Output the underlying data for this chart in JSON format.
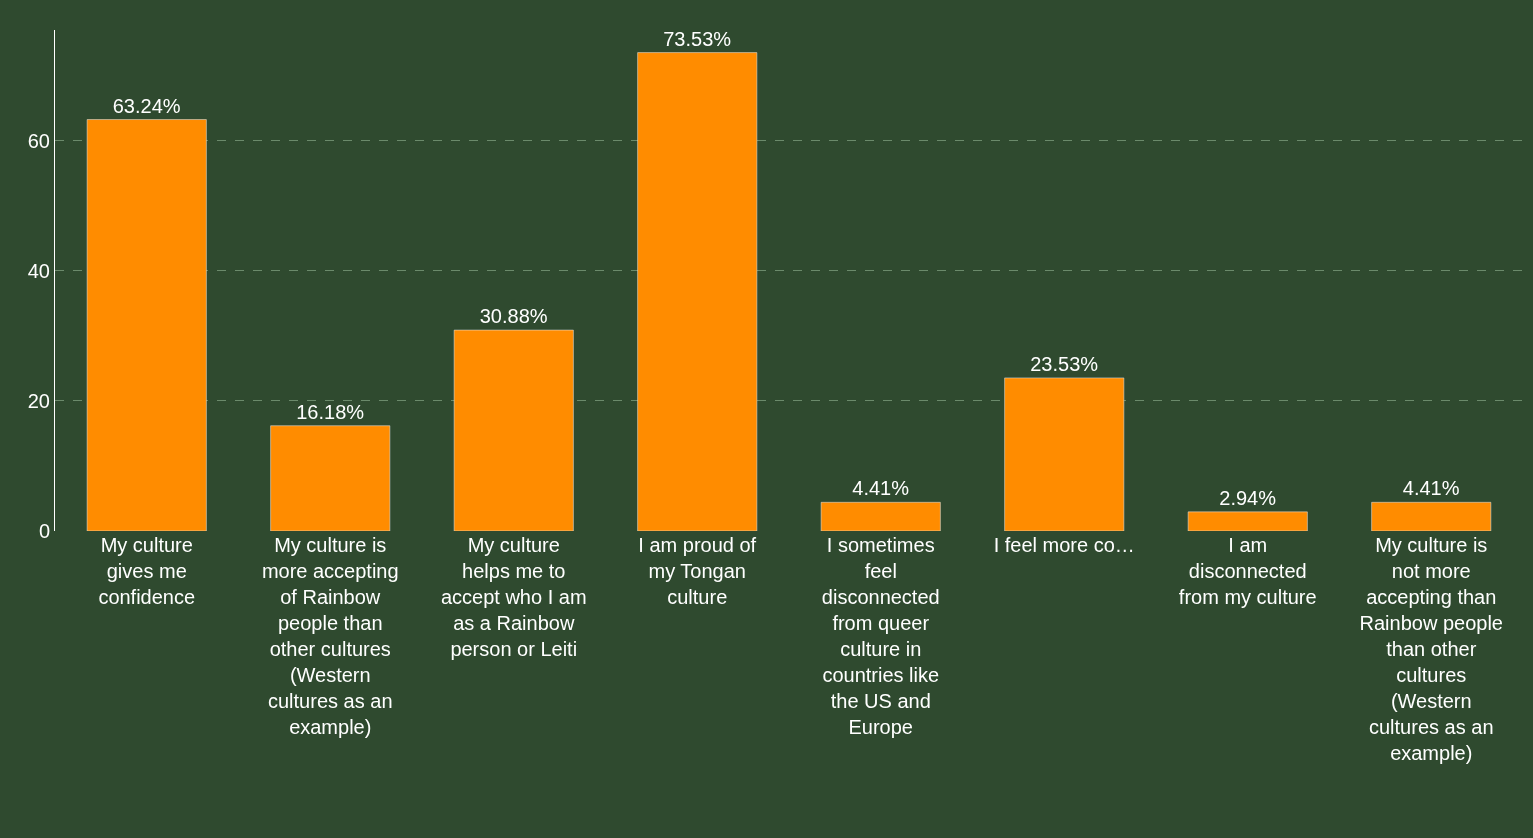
{
  "chart_data": {
    "type": "bar",
    "categories": [
      "My culture gives me confidence",
      "My culture is more accepting of Rainbow people than other cultures (Western cultures as an example)",
      "My culture helps me to accept who I am as a Rainbow person or Leiti",
      "I am proud of my Tongan culture",
      "I sometimes feel disconnected from queer culture in countries like the US and Europe",
      "I feel more co…",
      "I am disconnected from my culture",
      "My culture is not more accepting than Rainbow people than other cultures (Western cultures as an example)"
    ],
    "values": [
      63.24,
      16.18,
      30.88,
      73.53,
      4.41,
      23.53,
      2.94,
      4.41
    ],
    "value_labels": [
      "63.24%",
      "16.18%",
      "30.88%",
      "73.53%",
      "4.41%",
      "23.53%",
      "2.94%",
      "4.41%"
    ],
    "color": "#ff8c00",
    "ylim": [
      0,
      77
    ],
    "yticks": [
      0,
      20,
      40,
      60
    ],
    "grid": "y",
    "legend": false
  }
}
